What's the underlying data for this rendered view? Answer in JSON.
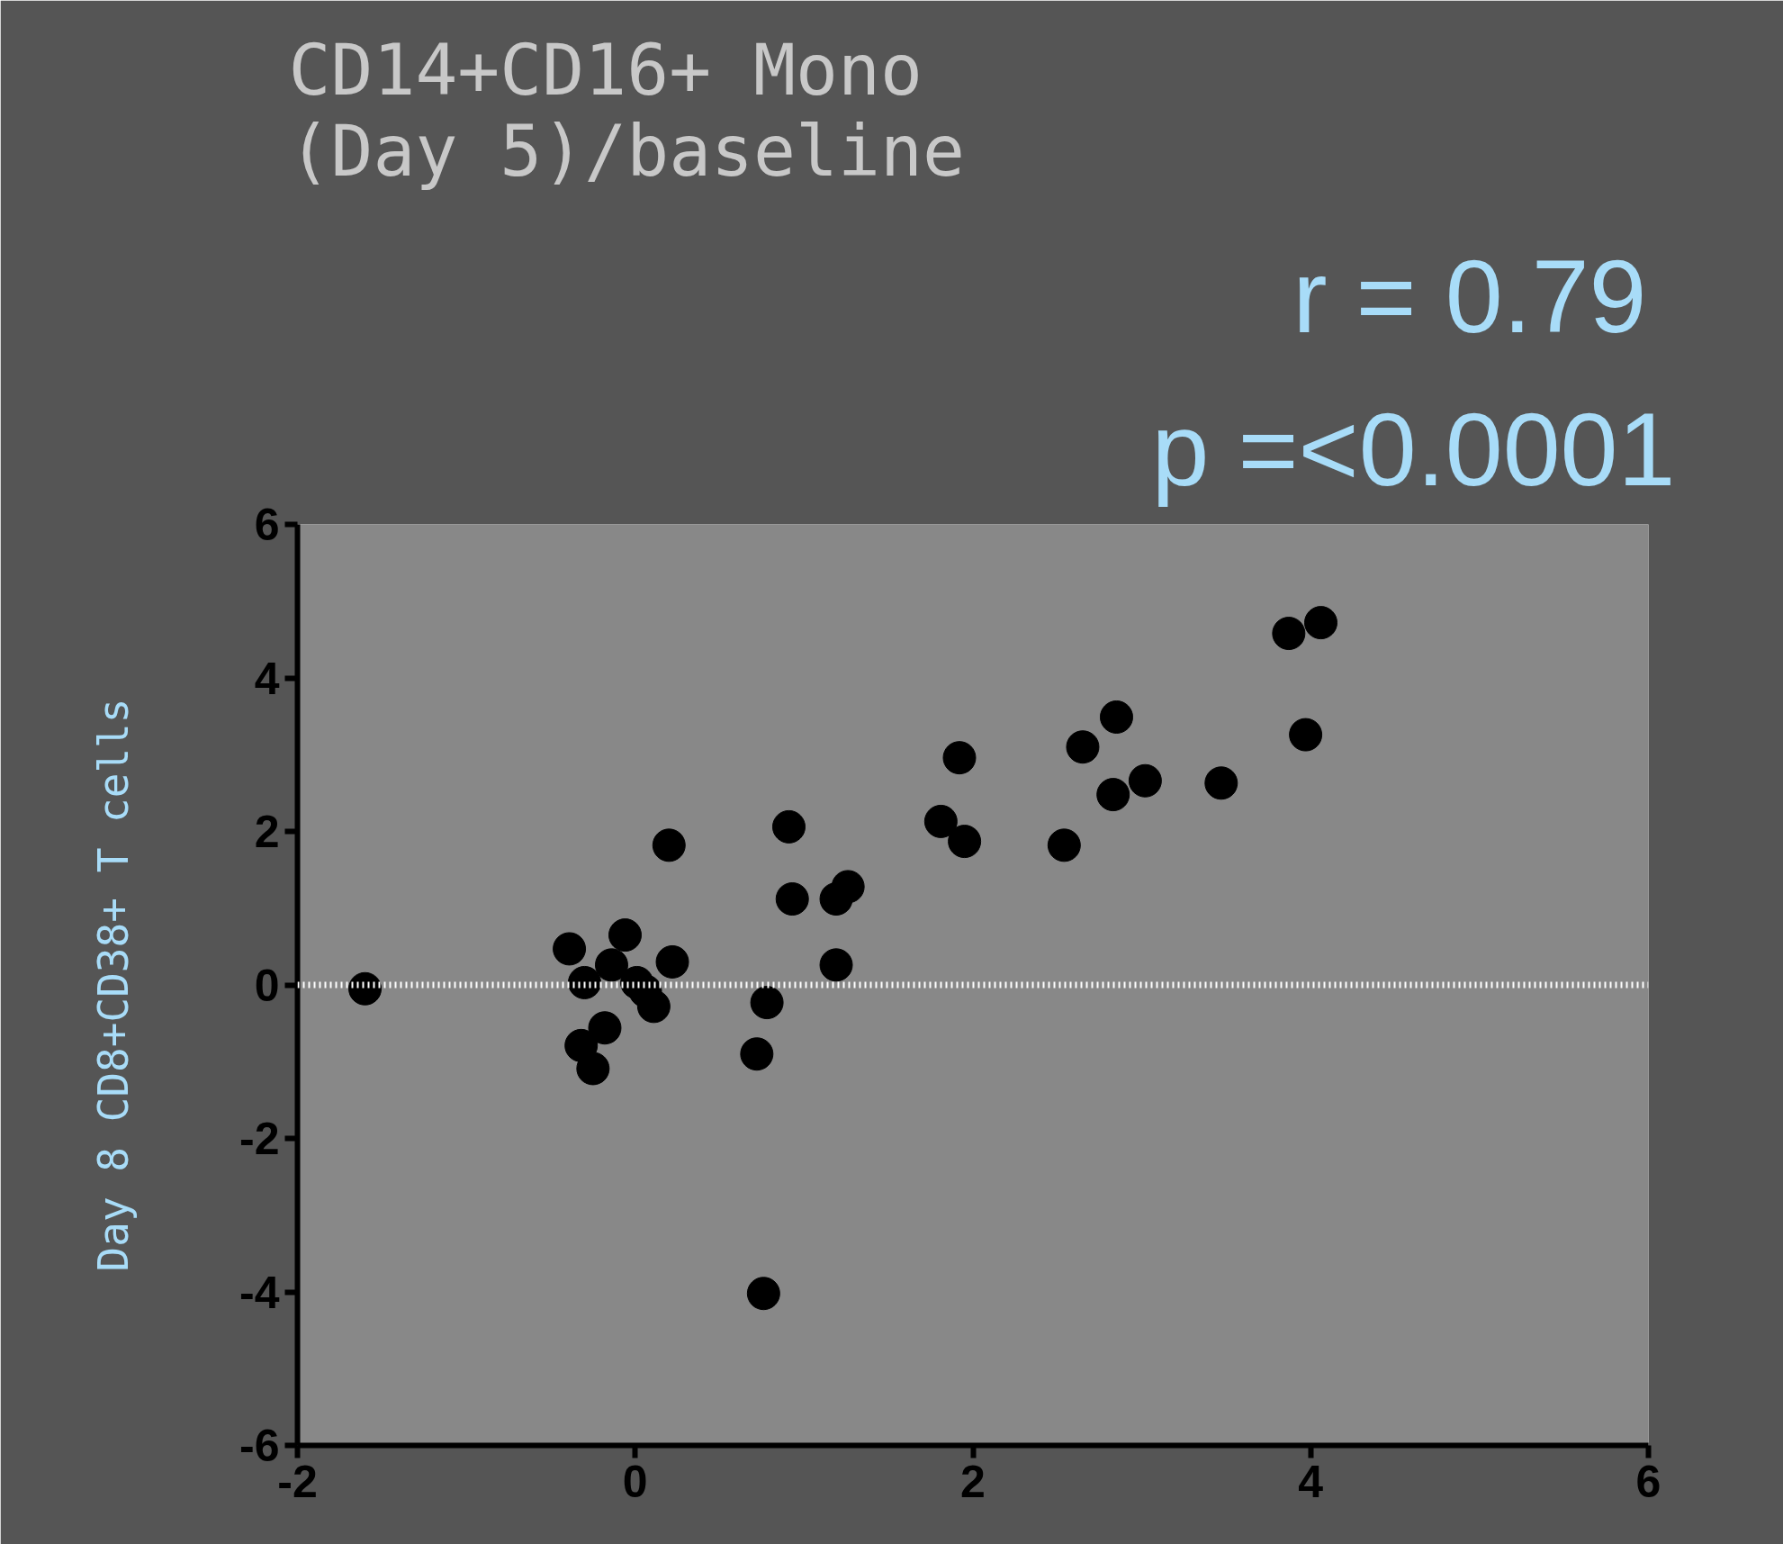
{
  "chart_data": {
    "type": "scatter",
    "title": "CD14+CD16+ Mono\n(Day 5)/baseline",
    "ylabel": "Day 8 CD8+CD38+ T cells",
    "annotations": [
      "r =  0.79",
      "p =<0.0001"
    ],
    "x": [
      -1.6,
      -0.39,
      -0.3,
      -0.06,
      -0.14,
      0.01,
      0.06,
      0.22,
      0.11,
      -0.18,
      -0.32,
      -0.25,
      0.2,
      0.72,
      0.78,
      0.76,
      0.91,
      0.93,
      1.19,
      1.26,
      1.19,
      1.81,
      1.95,
      1.92,
      2.54,
      2.65,
      2.85,
      2.83,
      3.02,
      3.47,
      3.87,
      4.06,
      3.97
    ],
    "series": [
      {
        "color": "#000000",
        "values": [
          -0.05,
          0.47,
          0.03,
          0.65,
          0.26,
          0.03,
          -0.08,
          0.3,
          -0.28,
          -0.56,
          -0.79,
          -1.09,
          1.82,
          -0.9,
          -0.23,
          -4.02,
          2.06,
          1.12,
          1.12,
          1.28,
          0.26,
          2.13,
          1.87,
          2.96,
          1.82,
          3.1,
          3.49,
          2.48,
          2.66,
          2.63,
          4.58,
          4.72,
          3.26
        ]
      }
    ],
    "marker": "circle",
    "xlim": [
      -2,
      6
    ],
    "xticks": [
      -2,
      0,
      2,
      4,
      6
    ],
    "ylim": [
      -6,
      6
    ],
    "yticks": [
      -6,
      -4,
      -2,
      0,
      2,
      4,
      6
    ],
    "ref_lines": [
      {
        "axis": "y",
        "value": 0,
        "color": "#ffffff",
        "line_style": "dotted"
      }
    ]
  }
}
